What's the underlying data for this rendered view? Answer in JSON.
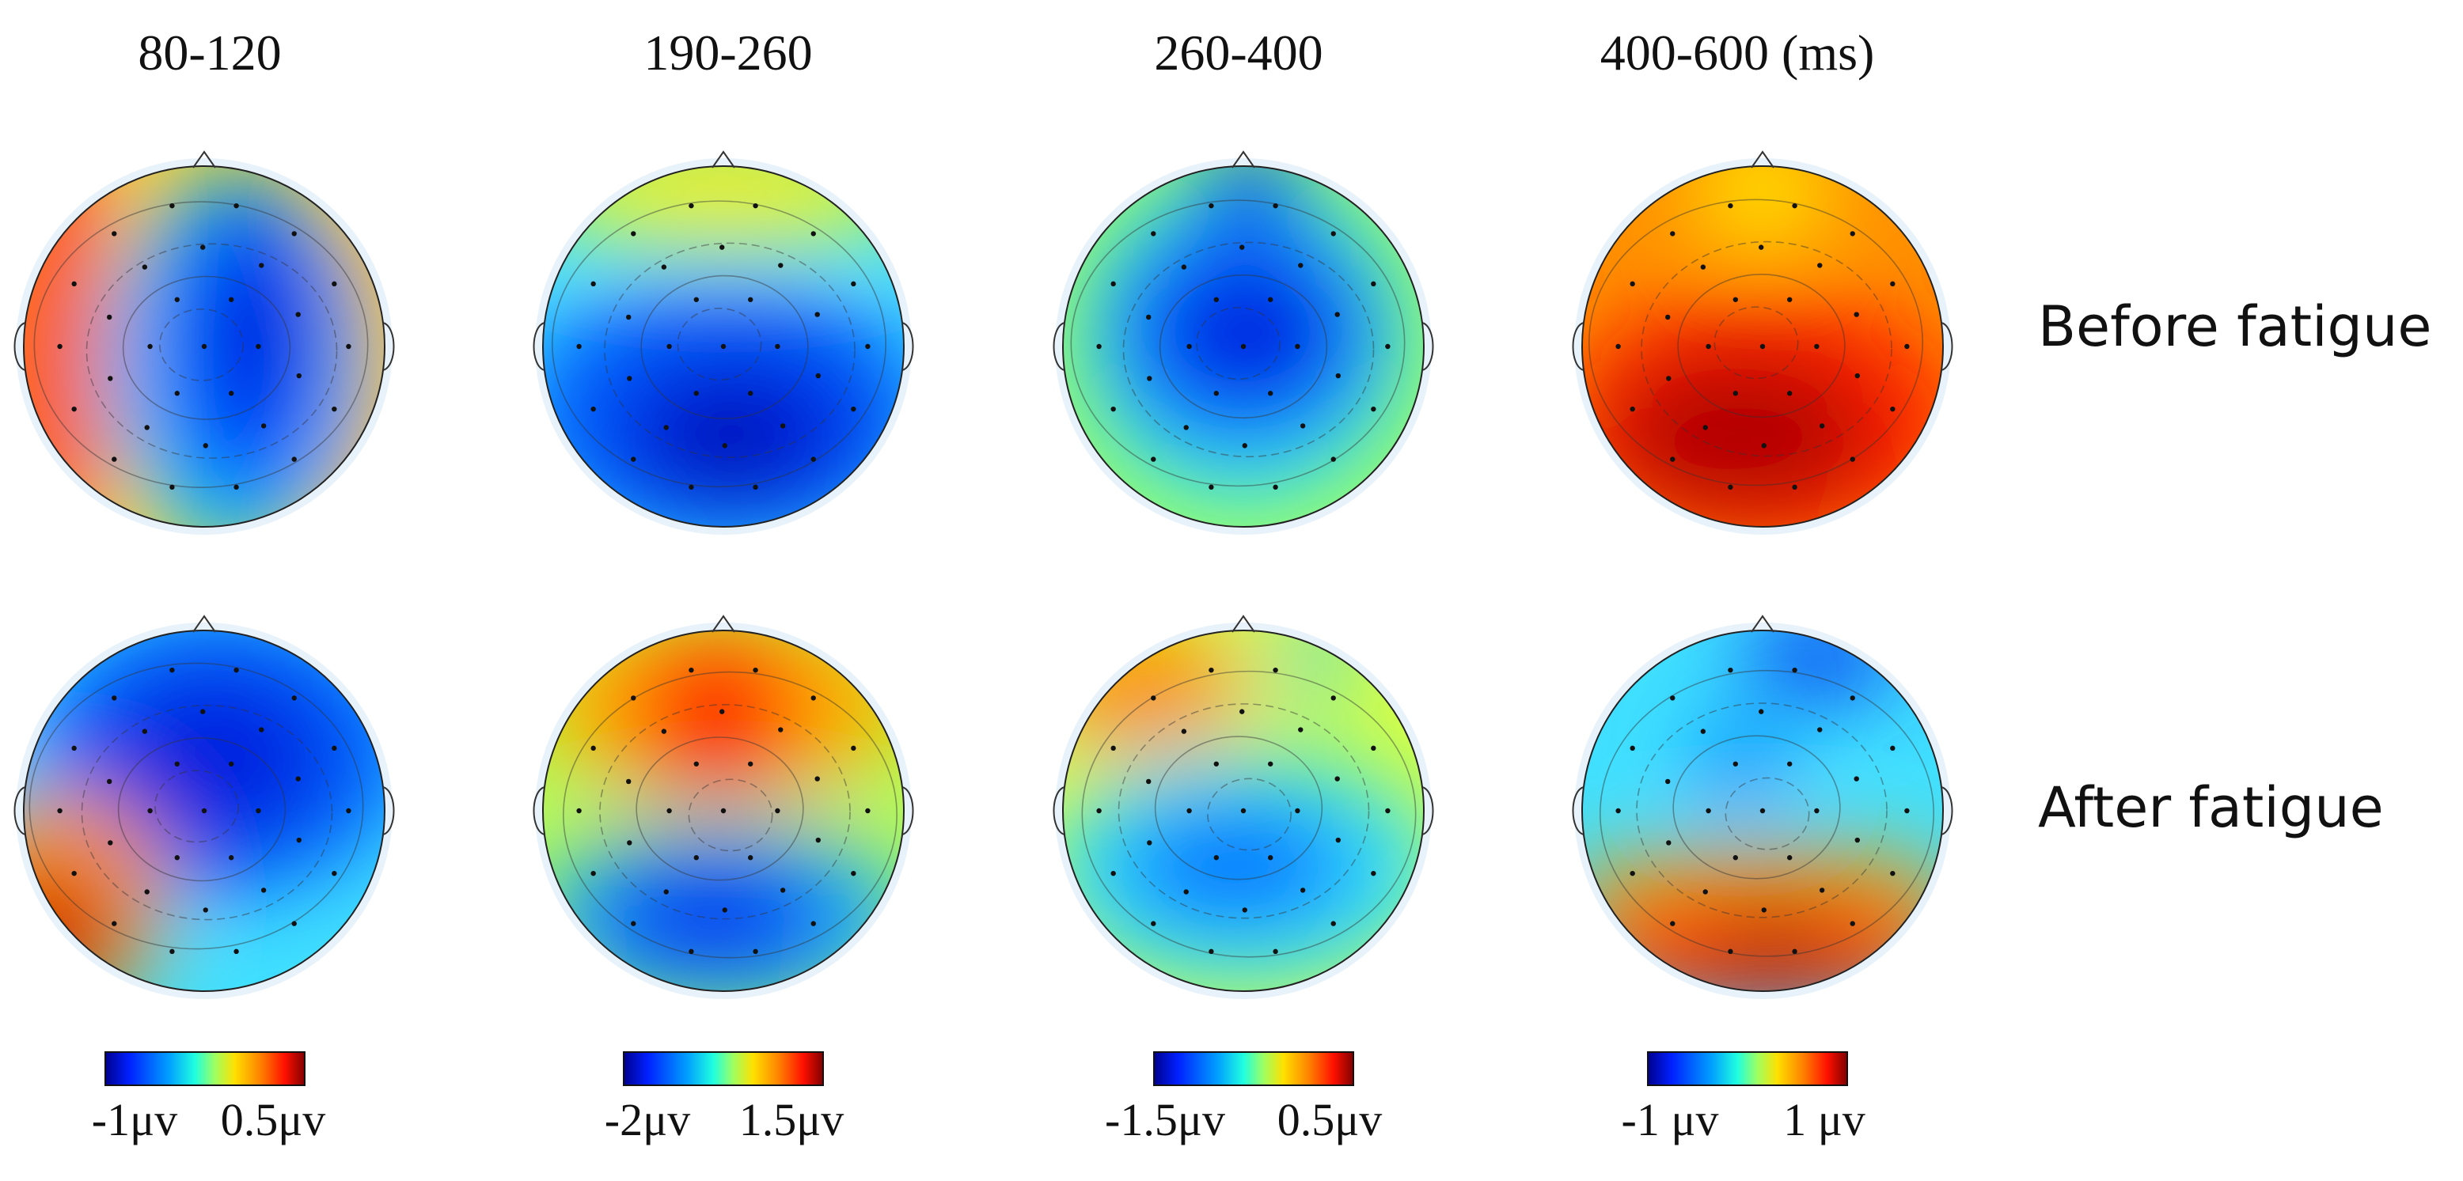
{
  "columns": [
    {
      "title": "80-120",
      "colorbar": {
        "min_label": "-1μv",
        "max_label": "0.5μv"
      }
    },
    {
      "title": "190-260",
      "colorbar": {
        "min_label": "-2μv",
        "max_label": "1.5μv"
      }
    },
    {
      "title": "260-400",
      "colorbar": {
        "min_label": "-1.5μv",
        "max_label": "0.5μv"
      }
    },
    {
      "title": "400-600 (ms)",
      "colorbar": {
        "min_label": "-1 μv",
        "max_label": "1 μv"
      }
    }
  ],
  "rows": [
    {
      "label": "Before fatigue"
    },
    {
      "label": "After fatigue"
    }
  ],
  "colormap": [
    "#00008f",
    "#0020ff",
    "#00a0ff",
    "#20ffdf",
    "#9fff60",
    "#ffe000",
    "#ff8000",
    "#ff1000",
    "#800000"
  ],
  "colorbar_labels": [
    "min",
    "max"
  ]
}
